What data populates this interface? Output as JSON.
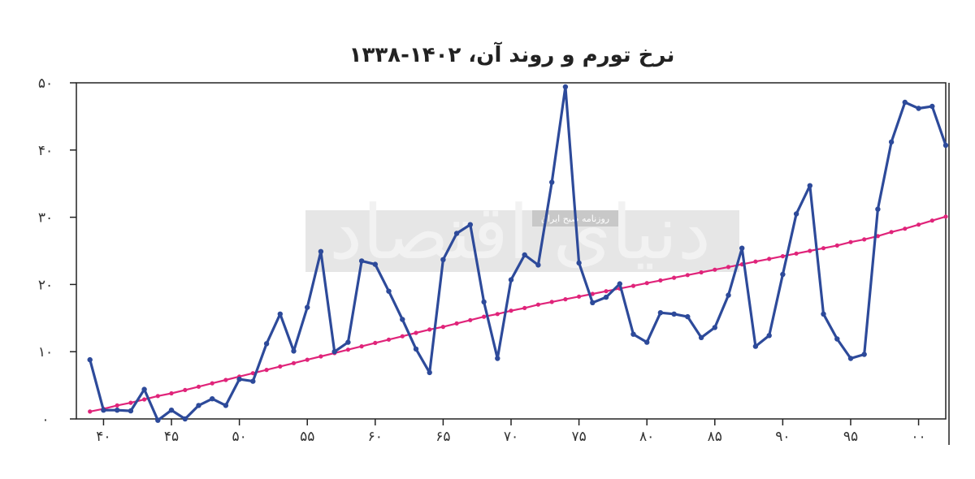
{
  "chart_data": {
    "type": "line",
    "title": "نرخ تورم و روند آن، ۱۴۰۲-۱۳۳۸",
    "xlabel": "",
    "ylabel": "",
    "xlim": [
      1338,
      1402
    ],
    "ylim": [
      0,
      50
    ],
    "x_ticks": [
      {
        "value": 1340,
        "label": "۴۰"
      },
      {
        "value": 1345,
        "label": "۴۵"
      },
      {
        "value": 1350,
        "label": "۵۰"
      },
      {
        "value": 1355,
        "label": "۵۵"
      },
      {
        "value": 1360,
        "label": "۶۰"
      },
      {
        "value": 1365,
        "label": "۶۵"
      },
      {
        "value": 1370,
        "label": "۷۰"
      },
      {
        "value": 1375,
        "label": "۷۵"
      },
      {
        "value": 1380,
        "label": "۸۰"
      },
      {
        "value": 1385,
        "label": "۸۵"
      },
      {
        "value": 1390,
        "label": "۹۰"
      },
      {
        "value": 1395,
        "label": "۹۵"
      },
      {
        "value": 1400,
        "label": "۰۰"
      }
    ],
    "y_ticks": [
      {
        "value": 0,
        "label": "۰"
      },
      {
        "value": 10,
        "label": "۱۰"
      },
      {
        "value": 20,
        "label": "۲۰"
      },
      {
        "value": 30,
        "label": "۳۰"
      },
      {
        "value": 40,
        "label": "۴۰"
      },
      {
        "value": 50,
        "label": "۵۰"
      }
    ],
    "x": [
      1339,
      1340,
      1341,
      1342,
      1343,
      1344,
      1345,
      1346,
      1347,
      1348,
      1349,
      1350,
      1351,
      1352,
      1353,
      1354,
      1355,
      1356,
      1357,
      1358,
      1359,
      1360,
      1361,
      1362,
      1363,
      1364,
      1365,
      1366,
      1367,
      1368,
      1369,
      1370,
      1371,
      1372,
      1373,
      1374,
      1375,
      1376,
      1377,
      1378,
      1379,
      1380,
      1381,
      1382,
      1383,
      1384,
      1385,
      1386,
      1387,
      1388,
      1389,
      1390,
      1391,
      1392,
      1393,
      1394,
      1395,
      1396,
      1397,
      1398,
      1399,
      1400,
      1401,
      1402
    ],
    "series": [
      {
        "color": "#2d4a9a",
        "values": [
          8.8,
          1.3,
          1.3,
          1.2,
          4.4,
          -0.2,
          1.3,
          0,
          2.0,
          3.0,
          2.0,
          5.9,
          5.6,
          11.2,
          15.6,
          10.1,
          16.6,
          24.9,
          10.0,
          11.4,
          23.5,
          23.0,
          19.0,
          14.8,
          10.4,
          6.9,
          23.7,
          27.6,
          28.9,
          17.4,
          9.0,
          20.7,
          24.4,
          22.9,
          35.2,
          49.4,
          23.2,
          17.3,
          18.1,
          20.1,
          12.6,
          11.4,
          15.8,
          15.6,
          15.2,
          12.1,
          13.6,
          18.4,
          25.4,
          10.8,
          12.4,
          21.5,
          30.5,
          34.7,
          15.6,
          11.9,
          9.0,
          9.6,
          31.2,
          41.2,
          47.1,
          46.2,
          46.5,
          40.7
        ]
      },
      {
        "color": "#e0247a",
        "values": [
          1.1,
          1.5,
          2.0,
          2.4,
          2.9,
          3.4,
          3.8,
          4.3,
          4.8,
          5.3,
          5.8,
          6.3,
          6.8,
          7.3,
          7.8,
          8.3,
          8.8,
          9.3,
          9.8,
          10.3,
          10.8,
          11.3,
          11.8,
          12.3,
          12.8,
          13.3,
          13.7,
          14.2,
          14.7,
          15.2,
          15.6,
          16.1,
          16.5,
          17.0,
          17.4,
          17.8,
          18.2,
          18.6,
          19.0,
          19.4,
          19.8,
          20.2,
          20.6,
          21.0,
          21.4,
          21.8,
          22.2,
          22.6,
          23.0,
          23.4,
          23.8,
          24.2,
          24.6,
          25.0,
          25.4,
          25.8,
          26.3,
          26.7,
          27.2,
          27.8,
          28.3,
          28.9,
          29.5,
          30.1
        ]
      }
    ],
    "grid": false,
    "legend": "none"
  },
  "watermark": {
    "name": "دنیای اقتصاد",
    "tagline": "روزنامه صبح ایران"
  }
}
